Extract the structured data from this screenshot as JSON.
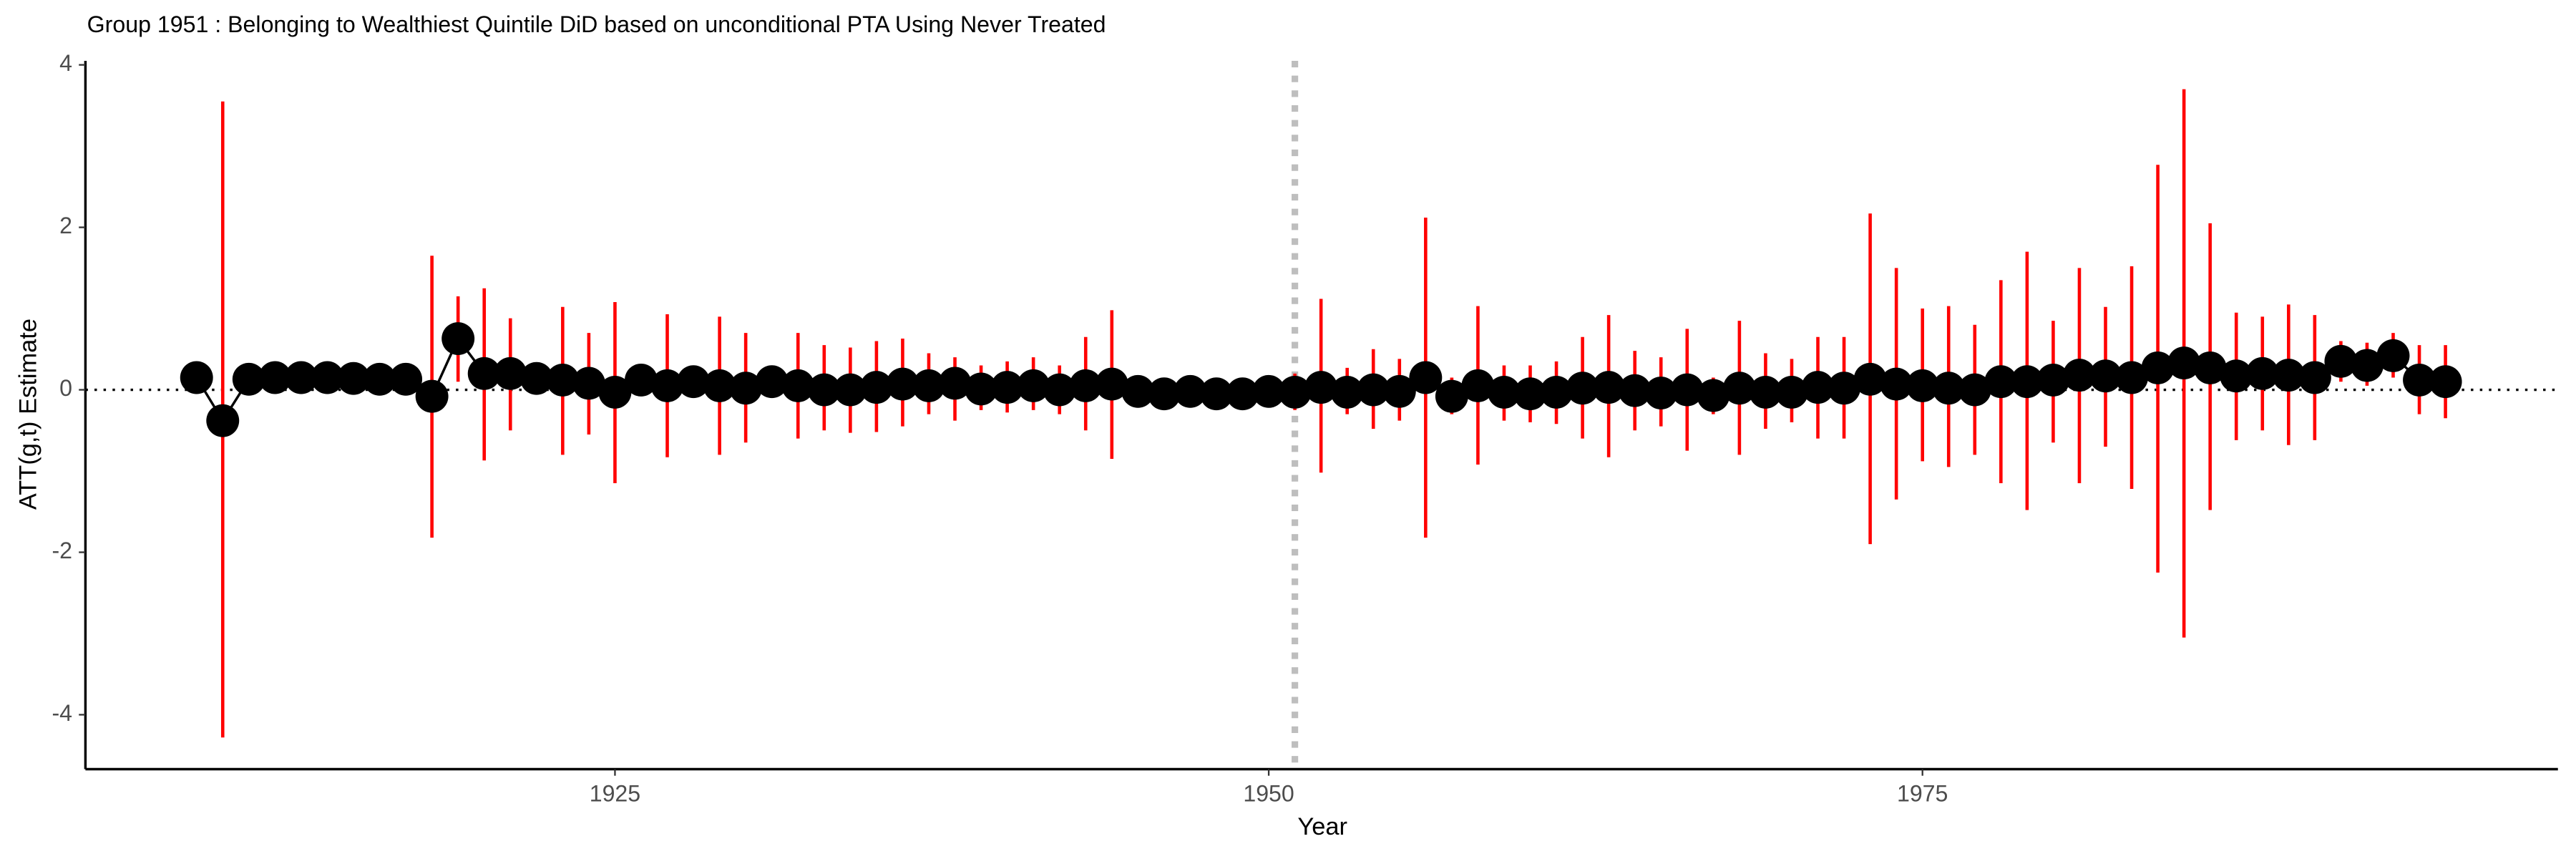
{
  "chart_data": {
    "type": "errorbar",
    "title": "Group 1951 : Belonging to Wealthiest Quintile DiD based on unconditional PTA Using Never Treated",
    "x_label": "Year",
    "y_label": "ATT(g,t) Estimate",
    "x": [
      1909,
      1910,
      1911,
      1912,
      1913,
      1914,
      1915,
      1916,
      1917,
      1918,
      1919,
      1920,
      1921,
      1922,
      1923,
      1924,
      1925,
      1926,
      1927,
      1928,
      1929,
      1930,
      1931,
      1932,
      1933,
      1934,
      1935,
      1936,
      1937,
      1938,
      1939,
      1940,
      1941,
      1942,
      1943,
      1944,
      1945,
      1946,
      1947,
      1948,
      1949,
      1950,
      1951,
      1952,
      1953,
      1954,
      1955,
      1956,
      1957,
      1958,
      1959,
      1960,
      1961,
      1962,
      1963,
      1964,
      1965,
      1966,
      1967,
      1968,
      1969,
      1970,
      1971,
      1972,
      1973,
      1974,
      1975,
      1976,
      1977,
      1978,
      1979,
      1980,
      1981,
      1982,
      1983,
      1984,
      1985,
      1986,
      1987,
      1988,
      1989,
      1990,
      1991,
      1992,
      1993,
      1994,
      1995
    ],
    "series": [
      {
        "color": "#000000",
        "bar_color": "#ff0000",
        "values": [
          0.15,
          -0.38,
          0.13,
          0.15,
          0.15,
          0.15,
          0.14,
          0.13,
          0.13,
          -0.08,
          0.63,
          0.2,
          0.2,
          0.14,
          0.12,
          0.08,
          -0.03,
          0.12,
          0.05,
          0.1,
          0.05,
          0.02,
          0.1,
          0.05,
          0.0,
          0.0,
          0.03,
          0.07,
          0.05,
          0.08,
          0.01,
          0.03,
          0.05,
          0.0,
          0.05,
          0.07,
          -0.02,
          -0.05,
          -0.02,
          -0.05,
          -0.05,
          -0.02,
          -0.03,
          0.03,
          -0.03,
          0.0,
          -0.02,
          0.15,
          -0.08,
          0.05,
          -0.03,
          -0.05,
          -0.03,
          0.02,
          0.03,
          -0.01,
          -0.04,
          0.0,
          -0.07,
          0.02,
          -0.03,
          -0.03,
          0.03,
          0.02,
          0.13,
          0.07,
          0.05,
          0.02,
          0.0,
          0.1,
          0.1,
          0.12,
          0.18,
          0.17,
          0.15,
          0.27,
          0.33,
          0.27,
          0.17,
          0.2,
          0.18,
          0.15,
          0.35,
          0.3,
          0.42,
          0.12,
          0.1
        ],
        "lower": [
          null,
          -4.28,
          null,
          null,
          null,
          null,
          null,
          null,
          null,
          -1.82,
          0.1,
          -0.87,
          -0.5,
          0.0,
          -0.8,
          -0.55,
          -1.15,
          -0.05,
          -0.83,
          -0.1,
          -0.8,
          -0.65,
          -0.1,
          -0.6,
          -0.5,
          -0.53,
          -0.52,
          -0.45,
          -0.3,
          -0.38,
          -0.25,
          -0.28,
          -0.25,
          -0.3,
          -0.5,
          -0.85,
          -0.15,
          null,
          null,
          null,
          null,
          null,
          -0.25,
          -1.02,
          -0.3,
          -0.48,
          -0.38,
          -1.82,
          -0.3,
          -0.92,
          -0.38,
          -0.4,
          -0.42,
          -0.6,
          -0.83,
          -0.5,
          -0.45,
          -0.75,
          -0.3,
          -0.8,
          -0.48,
          -0.4,
          -0.6,
          -0.6,
          -1.9,
          -1.35,
          -0.88,
          -0.95,
          -0.8,
          -1.15,
          -1.48,
          -0.65,
          -1.15,
          -0.7,
          -1.22,
          -2.25,
          -3.05,
          -1.48,
          -0.62,
          -0.5,
          -0.68,
          -0.62,
          0.1,
          0.05,
          0.15,
          -0.3,
          -0.35
        ],
        "upper": [
          null,
          3.55,
          null,
          null,
          null,
          null,
          null,
          null,
          null,
          1.65,
          1.15,
          1.25,
          0.88,
          0.3,
          1.02,
          0.7,
          1.08,
          0.3,
          0.93,
          0.3,
          0.9,
          0.7,
          0.3,
          0.7,
          0.55,
          0.52,
          0.6,
          0.63,
          0.45,
          0.4,
          0.3,
          0.35,
          0.4,
          0.3,
          0.65,
          0.98,
          0.15,
          null,
          null,
          null,
          null,
          null,
          0.2,
          1.12,
          0.27,
          0.5,
          0.38,
          2.12,
          0.15,
          1.03,
          0.3,
          0.3,
          0.35,
          0.65,
          0.92,
          0.48,
          0.4,
          0.75,
          0.15,
          0.85,
          0.45,
          0.38,
          0.65,
          0.65,
          2.17,
          1.5,
          1.0,
          1.03,
          0.8,
          1.35,
          1.7,
          0.85,
          1.5,
          1.02,
          1.52,
          2.77,
          3.7,
          2.05,
          0.95,
          0.9,
          1.05,
          0.92,
          0.6,
          0.58,
          0.7,
          0.55,
          0.55
        ]
      }
    ],
    "xlim": [
      1904.75,
      1999.3
    ],
    "ylim": [
      -4.67,
      4.05
    ],
    "xticks": [
      1925,
      1950,
      1975
    ],
    "yticks": [
      -4,
      -2,
      0,
      2,
      4
    ],
    "hline": 0,
    "vline": 1951,
    "vline_color": "#bebebe",
    "grid": false
  }
}
